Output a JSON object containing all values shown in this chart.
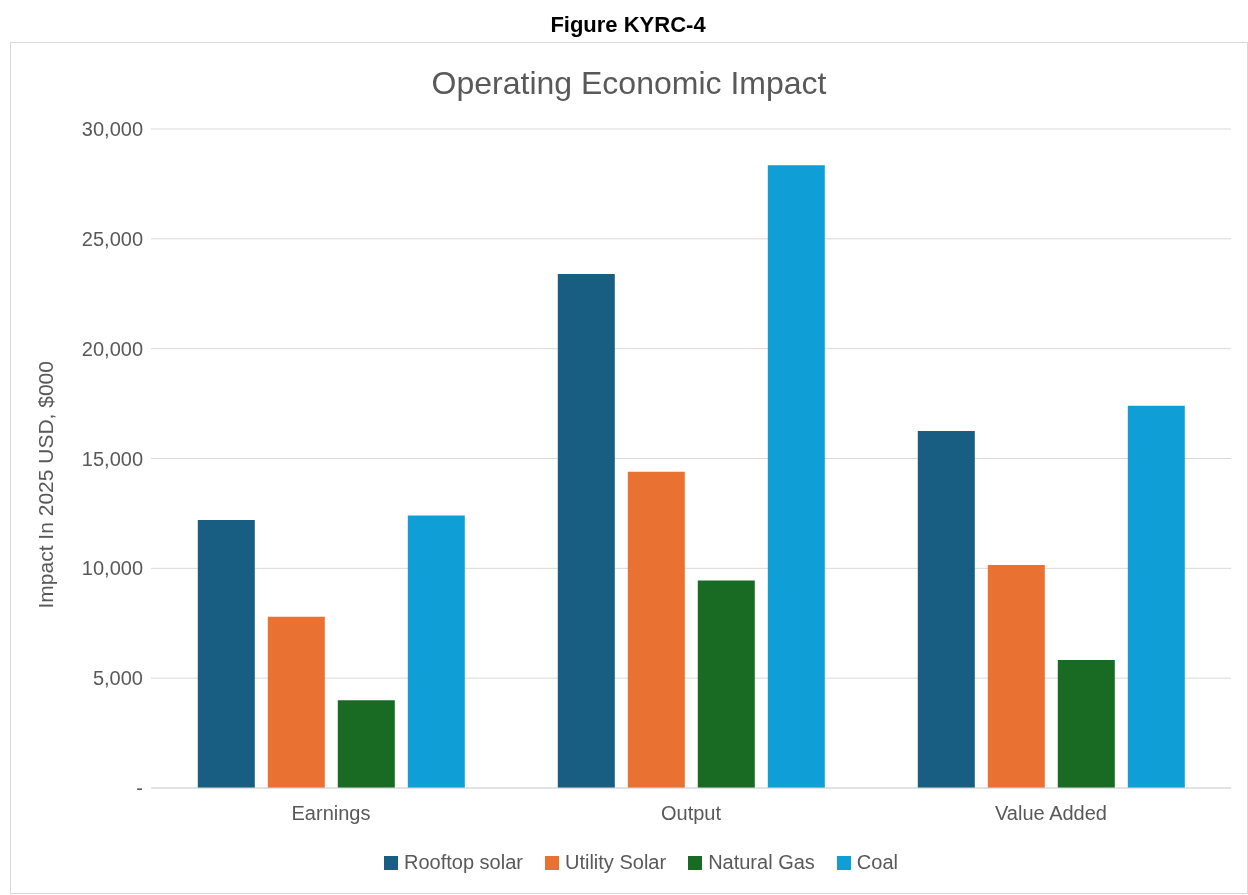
{
  "chart_data": {
    "type": "bar",
    "title": "Figure KYRC-4",
    "subtitle": "Operating Economic Impact",
    "ylabel": "Impact In 2025 USD, $000",
    "categories": [
      "Earnings",
      "Output",
      "Value Added"
    ],
    "series": [
      {
        "name": "Rooftop solar",
        "color": "#175e82",
        "values": [
          12200,
          23400,
          16250
        ]
      },
      {
        "name": "Utility Solar",
        "color": "#e97132",
        "values": [
          7800,
          14400,
          10150
        ]
      },
      {
        "name": "Natural Gas",
        "color": "#196b24",
        "values": [
          4000,
          9450,
          5830
        ]
      },
      {
        "name": "Coal",
        "color": "#0f9ed5",
        "values": [
          12400,
          28350,
          17400
        ]
      }
    ],
    "ylim": [
      0,
      30000
    ],
    "yticks": [
      {
        "value": 0,
        "label": "-"
      },
      {
        "value": 5000,
        "label": "5,000"
      },
      {
        "value": 10000,
        "label": "10,000"
      },
      {
        "value": 15000,
        "label": "15,000"
      },
      {
        "value": 20000,
        "label": "20,000"
      },
      {
        "value": 25000,
        "label": "25,000"
      },
      {
        "value": 30000,
        "label": "30,000"
      }
    ],
    "grid": "y",
    "legend": "bottom"
  }
}
